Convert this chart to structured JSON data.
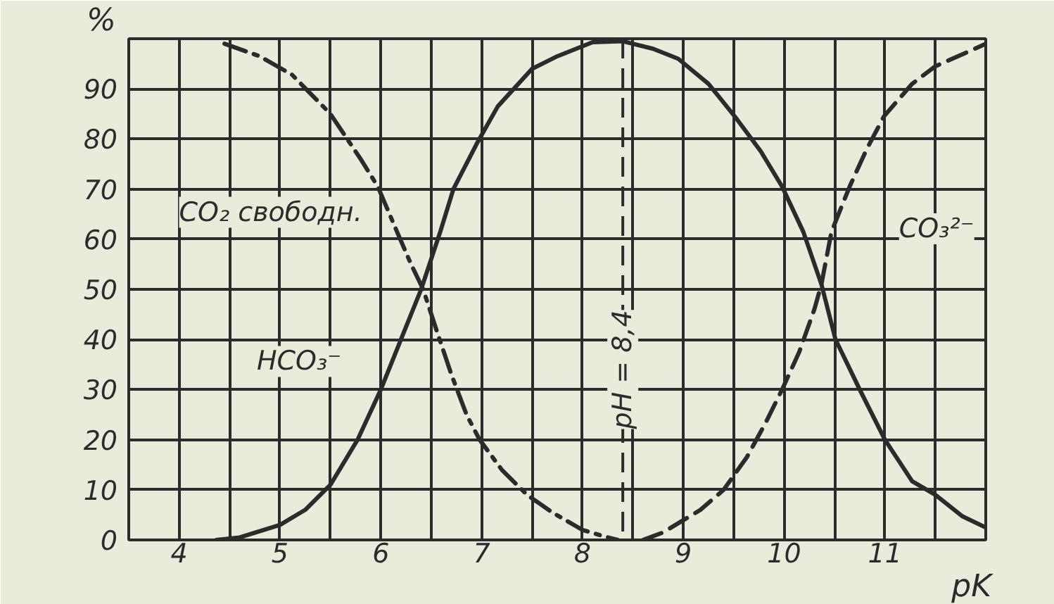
{
  "chart_data": {
    "type": "line",
    "xlabel": "pK",
    "ylabel": "%",
    "xlim": [
      3.5,
      12
    ],
    "ylim": [
      0,
      100
    ],
    "xticks": [
      4,
      {
        "value": 4.5,
        "label": null
      },
      5,
      {
        "value": 5.5,
        "label": null
      },
      6,
      {
        "value": 6.5,
        "label": null
      },
      7,
      {
        "value": 7.5,
        "label": null
      },
      8,
      {
        "value": 8.5,
        "label": null
      },
      9,
      {
        "value": 9.5,
        "label": null
      },
      10,
      {
        "value": 10.5,
        "label": null
      },
      11,
      {
        "value": 11.5,
        "label": null
      }
    ],
    "yticks": [
      0,
      10,
      20,
      30,
      40,
      50,
      60,
      70,
      80,
      90
    ],
    "grid": true,
    "legend": false,
    "series": [
      {
        "name": "CO₂ свободн.",
        "color": "#2b2b2b",
        "line_style": "dashdot",
        "x": [
          4.45,
          4.8,
          5.12,
          5.5,
          5.8,
          5.97,
          6.15,
          6.3,
          6.42,
          6.55,
          6.7,
          6.85,
          6.98,
          7.2,
          7.45,
          7.7,
          8.0,
          8.2,
          8.35
        ],
        "values": [
          99,
          96.5,
          92.8,
          85,
          76,
          70.5,
          62,
          55,
          50,
          42,
          33,
          25,
          20,
          14,
          9,
          5.5,
          2,
          0.8,
          0
        ]
      },
      {
        "name": "HCO₃⁻",
        "color": "#2b2b2b",
        "line_style": "solid",
        "x": [
          4.37,
          4.6,
          5.0,
          5.25,
          5.5,
          5.77,
          6.0,
          6.2,
          6.4,
          6.59,
          6.72,
          6.95,
          7.16,
          7.5,
          7.75,
          8.1,
          8.4,
          8.7,
          8.95,
          9.25,
          9.53,
          9.77,
          9.98,
          10.19,
          10.37,
          10.51,
          10.75,
          11.0,
          11.27,
          11.5,
          11.77,
          12.0
        ],
        "values": [
          0,
          0.5,
          3,
          6,
          11,
          20,
          30,
          40,
          50,
          61.5,
          70,
          79,
          86.5,
          94,
          96.5,
          99.3,
          99.5,
          98,
          96,
          91,
          84,
          77.5,
          70.5,
          61.5,
          51,
          40,
          30,
          20,
          11.7,
          9,
          4.7,
          2.5
        ]
      },
      {
        "name": "CO₃²⁻",
        "color": "#2b2b2b",
        "line_style": "dashed",
        "x": [
          8.6,
          8.8,
          9.17,
          9.4,
          9.63,
          9.82,
          9.98,
          10.15,
          10.3,
          10.37,
          10.47,
          10.65,
          10.82,
          10.99,
          11.27,
          11.5,
          11.87,
          12.0
        ],
        "values": [
          0,
          1.5,
          6,
          10,
          16.5,
          23.5,
          30,
          37.5,
          46,
          51,
          61.5,
          70.5,
          78,
          84.5,
          91,
          94.5,
          97.8,
          99
        ]
      }
    ],
    "ref_lines": [
      {
        "axis": "x",
        "value": 8.4,
        "label": "pH = 8,4",
        "line_style": "dashed",
        "color": "#2b2b2b"
      }
    ]
  }
}
